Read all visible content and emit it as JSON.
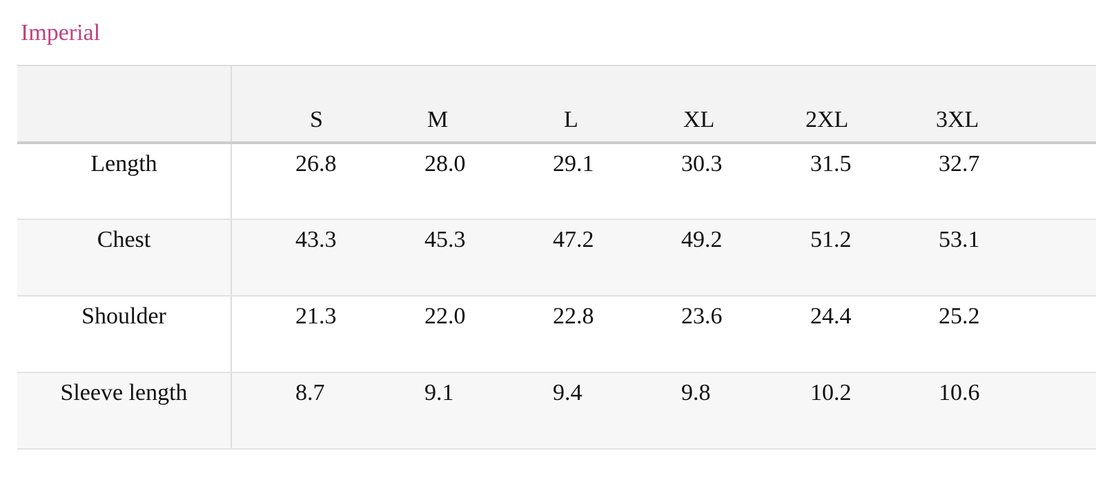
{
  "tab": {
    "label": "Imperial",
    "color": "#c2407f"
  },
  "table": {
    "columns": [
      "S",
      "M",
      "L",
      "XL",
      "2XL",
      "3XL"
    ],
    "rows": [
      {
        "label": "Length",
        "values": [
          "26.8",
          "28.0",
          "29.1",
          "30.3",
          "31.5",
          "32.7"
        ]
      },
      {
        "label": "Chest",
        "values": [
          "43.3",
          "45.3",
          "47.2",
          "49.2",
          "51.2",
          "53.1"
        ]
      },
      {
        "label": "Shoulder",
        "values": [
          "21.3",
          "22.0",
          "22.8",
          "23.6",
          "24.4",
          "25.2"
        ]
      },
      {
        "label": "Sleeve length",
        "values": [
          "8.7",
          "9.1",
          "9.4",
          "9.8",
          "10.2",
          "10.6"
        ]
      }
    ]
  }
}
